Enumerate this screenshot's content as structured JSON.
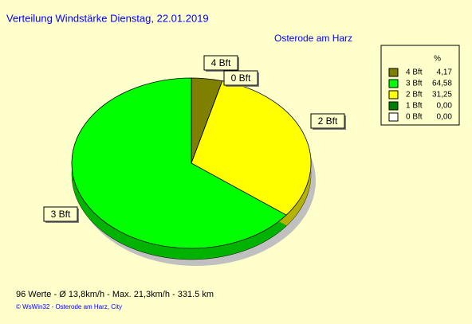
{
  "chart_data": {
    "type": "pie",
    "title": "Verteilung Windstärke  Dienstag, 22.01.2019",
    "subtitle": "Osterode am Harz",
    "legend_header": "%",
    "categories": [
      "4 Bft",
      "3 Bft",
      "2 Bft",
      "1 Bft",
      "0 Bft"
    ],
    "values": [
      4.17,
      64.58,
      31.25,
      0.0,
      0.0
    ],
    "value_labels": [
      "4,17",
      "64,58",
      "31,25",
      "0,00",
      "0,00"
    ],
    "colors": [
      "#808000",
      "#00ff00",
      "#ffff00",
      "#008000",
      "#ffffff"
    ],
    "footer": "96 Werte   -   Ø 13,8km/h  -  Max. 21,3km/h   -   331.5 km",
    "copyright": "© WsWin32  -  Osterode am Harz, City"
  }
}
